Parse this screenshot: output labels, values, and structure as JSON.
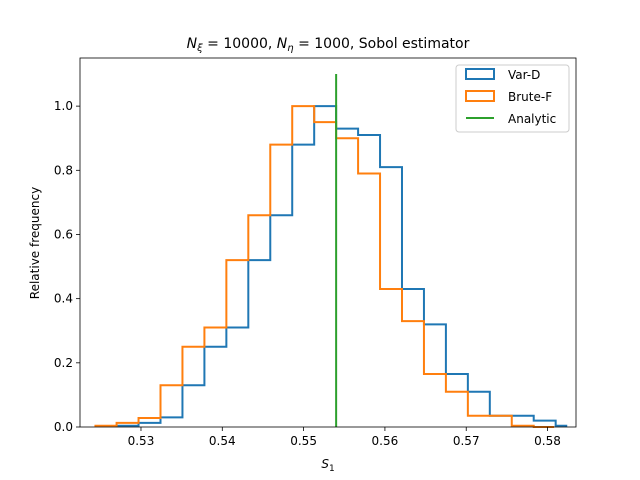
{
  "chart_data": {
    "type": "histogram",
    "title_parts": {
      "n_xi_sym": "N",
      "n_xi_sub": "ξ",
      "n_xi_val": " = 10000, ",
      "n_eta_sym": "N",
      "n_eta_sub": "η",
      "n_eta_val": " = 1000, Sobol estimator"
    },
    "xlabel_sym": "S",
    "xlabel_sub": "1",
    "ylabel": "Relative frequency",
    "xlim": [
      0.5225,
      0.5835
    ],
    "ylim": [
      0,
      1.15
    ],
    "xticks": [
      0.53,
      0.54,
      0.55,
      0.56,
      0.57,
      0.58
    ],
    "xtick_labels": [
      "0.53",
      "0.54",
      "0.55",
      "0.56",
      "0.57",
      "0.58"
    ],
    "yticks": [
      0.0,
      0.2,
      0.4,
      0.6,
      0.8,
      1.0
    ],
    "ytick_labels": [
      "0.0",
      "0.2",
      "0.4",
      "0.6",
      "0.8",
      "1.0"
    ],
    "legend_position": "top-right",
    "series": [
      {
        "name": "Var-D",
        "color": "#1f77b4",
        "edges": [
          0.527,
          0.5297,
          0.5324,
          0.5351,
          0.5378,
          0.5405,
          0.5432,
          0.5459,
          0.5486,
          0.5513,
          0.554,
          0.5567,
          0.5594,
          0.5621,
          0.5648,
          0.5675,
          0.5702,
          0.5729,
          0.5756,
          0.5783,
          0.581,
          0.5823
        ],
        "values": [
          0.004,
          0.013,
          0.03,
          0.13,
          0.25,
          0.31,
          0.52,
          0.66,
          0.88,
          1.0,
          0.93,
          0.91,
          0.81,
          0.43,
          0.32,
          0.165,
          0.11,
          0.035,
          0.035,
          0.02,
          0.004
        ]
      },
      {
        "name": "Brute-F",
        "color": "#ff7f0e",
        "edges": [
          0.5244,
          0.527,
          0.5297,
          0.5324,
          0.5351,
          0.5378,
          0.5405,
          0.5432,
          0.5459,
          0.5486,
          0.5513,
          0.554,
          0.5567,
          0.5594,
          0.5621,
          0.5648,
          0.5675,
          0.5702,
          0.5729,
          0.5756,
          0.5783,
          0.5808
        ],
        "values": [
          0.004,
          0.013,
          0.028,
          0.13,
          0.25,
          0.31,
          0.52,
          0.66,
          0.88,
          1.0,
          0.95,
          0.9,
          0.79,
          0.43,
          0.33,
          0.165,
          0.11,
          0.035,
          0.035,
          0.004,
          0.0
        ]
      }
    ],
    "analytic": {
      "name": "Analytic",
      "color": "#2ca02c",
      "x": 0.554,
      "y_top": 1.1
    }
  }
}
